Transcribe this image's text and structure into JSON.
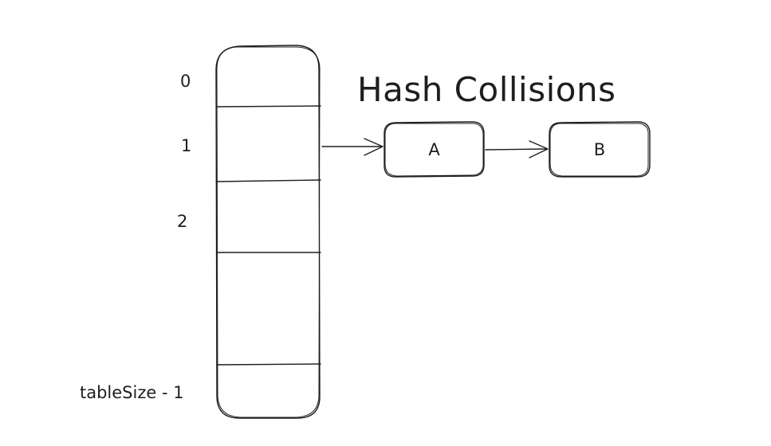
{
  "title": "Hash Collisions",
  "table": {
    "index_labels": [
      "0",
      "1",
      "2",
      "tableSize - 1"
    ]
  },
  "chain": {
    "nodes": [
      "A",
      "B"
    ]
  },
  "colors": {
    "stroke": "#1e1e1e",
    "background": "#ffffff"
  }
}
